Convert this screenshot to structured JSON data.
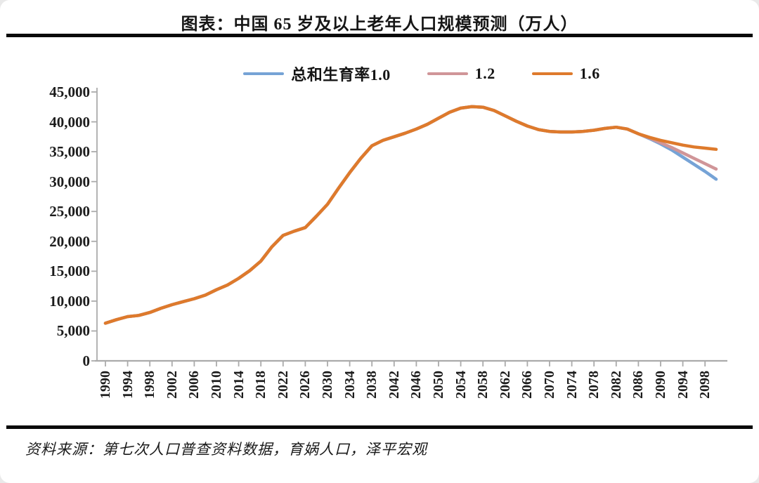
{
  "title": "图表：中国 65 岁及以上老年人口规模预测（万人）",
  "source": "资料来源：第七次人口普查资料数据，育娲人口，泽平宏观",
  "legend": [
    {
      "label": "总和生育率1.0",
      "color": "#76A3D6"
    },
    {
      "label": "1.2",
      "color": "#D09598"
    },
    {
      "label": "1.6",
      "color": "#DE7A2C"
    }
  ],
  "chart_data": {
    "type": "line",
    "title": "中国 65 岁及以上老年人口规模预测（万人）",
    "xlabel": "",
    "ylabel": "",
    "grid": false,
    "legend_position": "top",
    "axis_color": "#ABABAB",
    "ylim": [
      0,
      45000
    ],
    "ytick_step": 5000,
    "ytick_labels": [
      "0",
      "5,000",
      "10,000",
      "15,000",
      "20,000",
      "25,000",
      "30,000",
      "35,000",
      "40,000",
      "45,000"
    ],
    "xticks": [
      1990,
      1994,
      1998,
      2002,
      2006,
      2010,
      2014,
      2018,
      2022,
      2026,
      2030,
      2034,
      2038,
      2042,
      2046,
      2050,
      2054,
      2058,
      2062,
      2066,
      2070,
      2074,
      2078,
      2082,
      2086,
      2090,
      2094,
      2098
    ],
    "xtick_rotation": 90,
    "x": [
      1990,
      1992,
      1994,
      1996,
      1998,
      2000,
      2002,
      2004,
      2006,
      2008,
      2010,
      2012,
      2014,
      2016,
      2018,
      2020,
      2022,
      2024,
      2026,
      2028,
      2030,
      2032,
      2034,
      2036,
      2038,
      2040,
      2042,
      2044,
      2046,
      2048,
      2050,
      2052,
      2054,
      2056,
      2058,
      2060,
      2062,
      2064,
      2066,
      2068,
      2070,
      2072,
      2074,
      2076,
      2078,
      2080,
      2082,
      2084,
      2086,
      2088,
      2090,
      2092,
      2094,
      2096,
      2098,
      2100
    ],
    "series": [
      {
        "name": "总和生育率1.0",
        "color": "#76A3D6",
        "values": [
          6300,
          6900,
          7400,
          7600,
          8100,
          8800,
          9400,
          9900,
          10400,
          11000,
          11900,
          12700,
          13800,
          15100,
          16700,
          19100,
          21000,
          21700,
          22300,
          24200,
          26200,
          28900,
          31500,
          33900,
          36000,
          36900,
          37500,
          38100,
          38800,
          39600,
          40600,
          41600,
          42300,
          42550,
          42450,
          41900,
          41000,
          40100,
          39300,
          38700,
          38400,
          38300,
          38300,
          38400,
          38600,
          38900,
          39100,
          38800,
          38000,
          37200,
          36300,
          35300,
          34100,
          32900,
          31700,
          30400
        ]
      },
      {
        "name": "1.2",
        "color": "#D09598",
        "values": [
          6300,
          6900,
          7400,
          7600,
          8100,
          8800,
          9400,
          9900,
          10400,
          11000,
          11900,
          12700,
          13800,
          15100,
          16700,
          19100,
          21000,
          21700,
          22300,
          24200,
          26200,
          28900,
          31500,
          33900,
          36000,
          36900,
          37500,
          38100,
          38800,
          39600,
          40600,
          41600,
          42300,
          42550,
          42450,
          41900,
          41000,
          40100,
          39300,
          38700,
          38400,
          38300,
          38300,
          38400,
          38600,
          38900,
          39100,
          38800,
          38000,
          37300,
          36500,
          35700,
          34800,
          33900,
          33000,
          32100
        ]
      },
      {
        "name": "1.6",
        "color": "#DE7A2C",
        "values": [
          6300,
          6900,
          7400,
          7600,
          8100,
          8800,
          9400,
          9900,
          10400,
          11000,
          11900,
          12700,
          13800,
          15100,
          16700,
          19100,
          21000,
          21700,
          22300,
          24200,
          26200,
          28900,
          31500,
          33900,
          36000,
          36900,
          37500,
          38100,
          38800,
          39600,
          40600,
          41600,
          42300,
          42550,
          42450,
          41900,
          41000,
          40100,
          39300,
          38700,
          38400,
          38300,
          38300,
          38400,
          38600,
          38900,
          39100,
          38800,
          38000,
          37400,
          36900,
          36500,
          36100,
          35800,
          35600,
          35400
        ]
      }
    ]
  }
}
